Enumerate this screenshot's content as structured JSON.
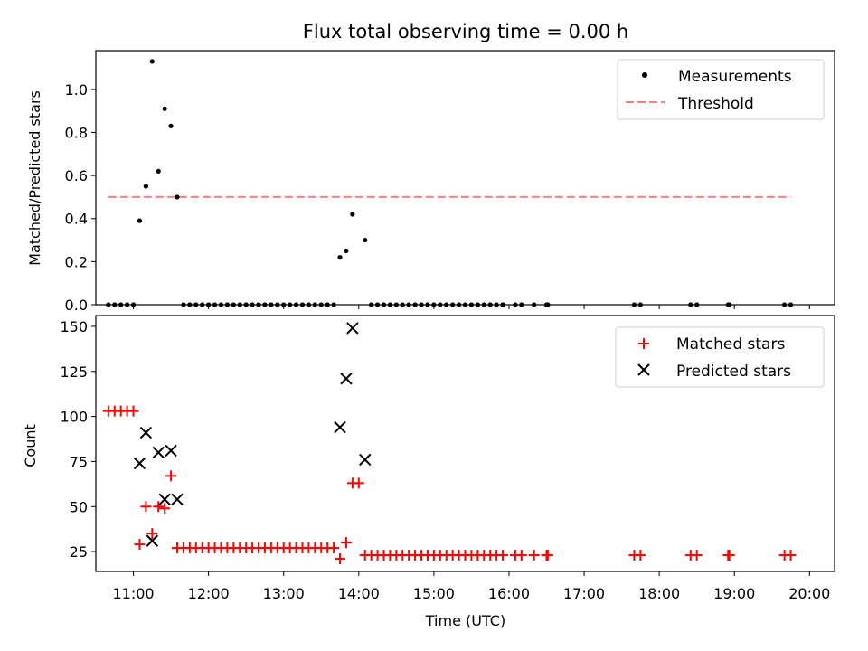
{
  "title": "Flux total observing time = 0.00 h",
  "colors": {
    "measurement": "#000000",
    "threshold": "#ff7f7f",
    "matched": "#ff0000",
    "predicted": "#000000"
  },
  "chart_data": [
    {
      "type": "scatter",
      "ylabel": "Matched/Predicted stars",
      "xlim": [
        "10:30",
        "20:20"
      ],
      "ylim": [
        0,
        1.18
      ],
      "yticks": [
        "0.0",
        "0.2",
        "0.4",
        "0.6",
        "0.8",
        "1.0"
      ],
      "legend": {
        "placement": "top-right",
        "entries": [
          "Measurements",
          "Threshold"
        ]
      },
      "threshold": {
        "name": "Threshold",
        "y": 0.5,
        "x_range": [
          "10:40",
          "19:45"
        ]
      },
      "series": [
        {
          "name": "Measurements",
          "points": [
            [
              "10:40",
              0
            ],
            [
              "10:45",
              0
            ],
            [
              "10:50",
              0
            ],
            [
              "10:55",
              0
            ],
            [
              "11:00",
              0
            ],
            [
              "11:05",
              0.39
            ],
            [
              "11:10",
              0.55
            ],
            [
              "11:15",
              1.13
            ],
            [
              "11:20",
              0.62
            ],
            [
              "11:25",
              0.91
            ],
            [
              "11:30",
              0.83
            ],
            [
              "11:35",
              0.5
            ],
            [
              "11:40",
              0
            ],
            [
              "11:45",
              0
            ],
            [
              "11:50",
              0
            ],
            [
              "11:55",
              0
            ],
            [
              "12:00",
              0
            ],
            [
              "12:05",
              0
            ],
            [
              "12:10",
              0
            ],
            [
              "12:15",
              0
            ],
            [
              "12:20",
              0
            ],
            [
              "12:25",
              0
            ],
            [
              "12:30",
              0
            ],
            [
              "12:35",
              0
            ],
            [
              "12:40",
              0
            ],
            [
              "12:45",
              0
            ],
            [
              "12:50",
              0
            ],
            [
              "12:55",
              0
            ],
            [
              "13:00",
              0
            ],
            [
              "13:05",
              0
            ],
            [
              "13:10",
              0
            ],
            [
              "13:15",
              0
            ],
            [
              "13:20",
              0
            ],
            [
              "13:25",
              0
            ],
            [
              "13:30",
              0
            ],
            [
              "13:35",
              0
            ],
            [
              "13:40",
              0
            ],
            [
              "13:45",
              0.22
            ],
            [
              "13:50",
              0.25
            ],
            [
              "13:55",
              0.42
            ],
            [
              "14:05",
              0.3
            ],
            [
              "14:10",
              0
            ],
            [
              "14:15",
              0
            ],
            [
              "14:20",
              0
            ],
            [
              "14:25",
              0
            ],
            [
              "14:30",
              0
            ],
            [
              "14:35",
              0
            ],
            [
              "14:40",
              0
            ],
            [
              "14:45",
              0
            ],
            [
              "14:50",
              0
            ],
            [
              "14:55",
              0
            ],
            [
              "15:00",
              0
            ],
            [
              "15:05",
              0
            ],
            [
              "15:10",
              0
            ],
            [
              "15:15",
              0
            ],
            [
              "15:20",
              0
            ],
            [
              "15:25",
              0
            ],
            [
              "15:30",
              0
            ],
            [
              "15:35",
              0
            ],
            [
              "15:40",
              0
            ],
            [
              "15:45",
              0
            ],
            [
              "15:50",
              0
            ],
            [
              "15:55",
              0
            ],
            [
              "16:05",
              0
            ],
            [
              "16:10",
              0
            ],
            [
              "16:20",
              0
            ],
            [
              "16:30",
              0
            ],
            [
              "16:31",
              0
            ],
            [
              "17:40",
              0
            ],
            [
              "17:45",
              0
            ],
            [
              "18:25",
              0
            ],
            [
              "18:30",
              0
            ],
            [
              "18:55",
              0
            ],
            [
              "18:56",
              0
            ],
            [
              "19:40",
              0
            ],
            [
              "19:45",
              0
            ]
          ]
        }
      ]
    },
    {
      "type": "scatter",
      "xlabel": "Time (UTC)",
      "ylabel": "Count",
      "xlim": [
        "10:30",
        "20:20"
      ],
      "ylim": [
        14,
        156
      ],
      "xticks": [
        "11:00",
        "12:00",
        "13:00",
        "14:00",
        "15:00",
        "16:00",
        "17:00",
        "18:00",
        "19:00",
        "20:00"
      ],
      "yticks": [
        "25",
        "50",
        "75",
        "100",
        "125",
        "150"
      ],
      "legend": {
        "placement": "top-right",
        "entries": [
          "Matched stars",
          "Predicted stars"
        ]
      },
      "series": [
        {
          "name": "Matched stars",
          "marker": "plus",
          "points": [
            [
              "10:40",
              103
            ],
            [
              "10:45",
              103
            ],
            [
              "10:50",
              103
            ],
            [
              "10:55",
              103
            ],
            [
              "11:00",
              103
            ],
            [
              "11:05",
              29
            ],
            [
              "11:10",
              50
            ],
            [
              "11:15",
              35
            ],
            [
              "11:20",
              50
            ],
            [
              "11:25",
              49
            ],
            [
              "11:30",
              67
            ],
            [
              "11:35",
              27
            ],
            [
              "11:40",
              27
            ],
            [
              "11:45",
              27
            ],
            [
              "11:50",
              27
            ],
            [
              "11:55",
              27
            ],
            [
              "12:00",
              27
            ],
            [
              "12:05",
              27
            ],
            [
              "12:10",
              27
            ],
            [
              "12:15",
              27
            ],
            [
              "12:20",
              27
            ],
            [
              "12:25",
              27
            ],
            [
              "12:30",
              27
            ],
            [
              "12:35",
              27
            ],
            [
              "12:40",
              27
            ],
            [
              "12:45",
              27
            ],
            [
              "12:50",
              27
            ],
            [
              "12:55",
              27
            ],
            [
              "13:00",
              27
            ],
            [
              "13:05",
              27
            ],
            [
              "13:10",
              27
            ],
            [
              "13:15",
              27
            ],
            [
              "13:20",
              27
            ],
            [
              "13:25",
              27
            ],
            [
              "13:30",
              27
            ],
            [
              "13:35",
              27
            ],
            [
              "13:40",
              27
            ],
            [
              "13:45",
              21
            ],
            [
              "13:50",
              30
            ],
            [
              "13:55",
              63
            ],
            [
              "14:00",
              63
            ],
            [
              "14:05",
              23
            ],
            [
              "14:10",
              23
            ],
            [
              "14:15",
              23
            ],
            [
              "14:20",
              23
            ],
            [
              "14:25",
              23
            ],
            [
              "14:30",
              23
            ],
            [
              "14:35",
              23
            ],
            [
              "14:40",
              23
            ],
            [
              "14:45",
              23
            ],
            [
              "14:50",
              23
            ],
            [
              "14:55",
              23
            ],
            [
              "15:00",
              23
            ],
            [
              "15:05",
              23
            ],
            [
              "15:10",
              23
            ],
            [
              "15:15",
              23
            ],
            [
              "15:20",
              23
            ],
            [
              "15:25",
              23
            ],
            [
              "15:30",
              23
            ],
            [
              "15:35",
              23
            ],
            [
              "15:40",
              23
            ],
            [
              "15:45",
              23
            ],
            [
              "15:50",
              23
            ],
            [
              "15:55",
              23
            ],
            [
              "16:05",
              23
            ],
            [
              "16:10",
              23
            ],
            [
              "16:20",
              23
            ],
            [
              "16:30",
              23
            ],
            [
              "16:31",
              23
            ],
            [
              "17:40",
              23
            ],
            [
              "17:45",
              23
            ],
            [
              "18:25",
              23
            ],
            [
              "18:30",
              23
            ],
            [
              "18:55",
              23
            ],
            [
              "18:56",
              23
            ],
            [
              "19:40",
              23
            ],
            [
              "19:45",
              23
            ]
          ]
        },
        {
          "name": "Predicted stars",
          "marker": "x",
          "points": [
            [
              "11:05",
              74
            ],
            [
              "11:10",
              91
            ],
            [
              "11:15",
              31
            ],
            [
              "11:20",
              80
            ],
            [
              "11:25",
              54
            ],
            [
              "11:30",
              81
            ],
            [
              "11:35",
              54
            ],
            [
              "13:45",
              94
            ],
            [
              "13:50",
              121
            ],
            [
              "13:55",
              149
            ],
            [
              "14:05",
              76
            ]
          ]
        }
      ]
    }
  ]
}
